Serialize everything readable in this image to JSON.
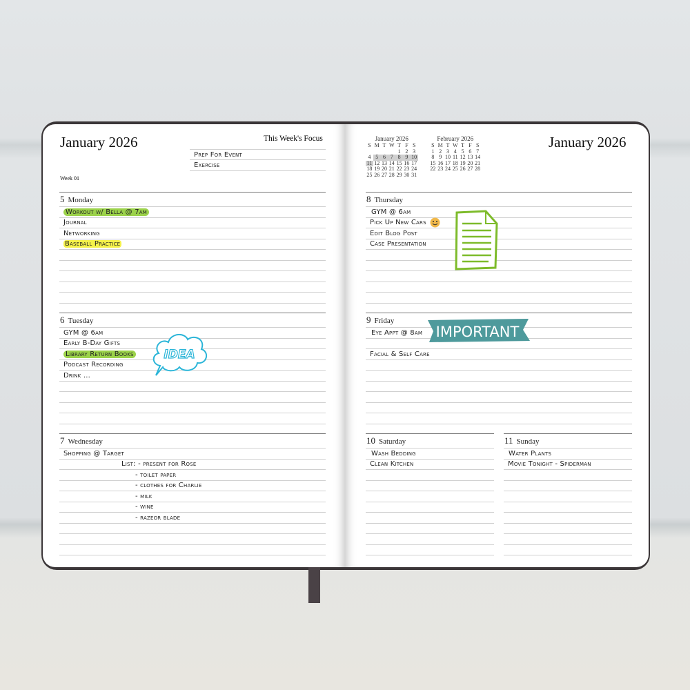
{
  "left_page": {
    "title": "January 2026",
    "focus_label": "This Week's Focus",
    "focus_items": [
      "Prep For Event",
      "Exercise"
    ],
    "week": "Week 01",
    "days": [
      {
        "num": "5",
        "name": "Monday",
        "entries": [
          {
            "text": "Workout w/ Bella @ 7am",
            "hl": "green"
          },
          {
            "text": "Journal"
          },
          {
            "text": "Networking"
          },
          {
            "text": "Baseball Practice",
            "hl": "yellow"
          }
        ]
      },
      {
        "num": "6",
        "name": "Tuesday",
        "entries": [
          {
            "text": "GYM @ 6am"
          },
          {
            "text": "Early B-Day Gifts"
          },
          {
            "text": "Library Return Books",
            "hl": "green"
          },
          {
            "text": "Podcast Recording"
          },
          {
            "text": "Drink ..."
          }
        ]
      },
      {
        "num": "7",
        "name": "Wednesday",
        "entries": [
          {
            "text": "Shopping @ Target"
          },
          {
            "text": "List: - present for Rose"
          },
          {
            "text": "- toilet paper"
          },
          {
            "text": "- clothes for Charlie"
          },
          {
            "text": "- milk"
          },
          {
            "text": "- wine"
          },
          {
            "text": "- razeor blade"
          }
        ]
      }
    ]
  },
  "right_page": {
    "title": "January 2026",
    "mini_calendars": [
      {
        "title": "January 2026",
        "weekdays": [
          "S",
          "M",
          "T",
          "W",
          "T",
          "F",
          "S"
        ],
        "weeks": [
          [
            "",
            "",
            "",
            "",
            "1",
            "2",
            "3"
          ],
          [
            "4",
            "5",
            "6",
            "7",
            "8",
            "9",
            "10"
          ],
          [
            "11",
            "12",
            "13",
            "14",
            "15",
            "16",
            "17"
          ],
          [
            "18",
            "19",
            "20",
            "21",
            "22",
            "23",
            "24"
          ],
          [
            "25",
            "26",
            "27",
            "28",
            "29",
            "30",
            "31"
          ]
        ],
        "highlighted": [
          "5",
          "6",
          "7",
          "8",
          "9",
          "10",
          "11"
        ]
      },
      {
        "title": "February 2026",
        "weekdays": [
          "S",
          "M",
          "T",
          "W",
          "T",
          "F",
          "S"
        ],
        "weeks": [
          [
            "1",
            "2",
            "3",
            "4",
            "5",
            "6",
            "7"
          ],
          [
            "8",
            "9",
            "10",
            "11",
            "12",
            "13",
            "14"
          ],
          [
            "15",
            "16",
            "17",
            "18",
            "19",
            "20",
            "21"
          ],
          [
            "22",
            "23",
            "24",
            "25",
            "26",
            "27",
            "28"
          ]
        ],
        "highlighted": []
      }
    ],
    "days": [
      {
        "num": "8",
        "name": "Thursday",
        "entries": [
          {
            "text": "GYM @ 6am"
          },
          {
            "text": "Pick Up New Cars"
          },
          {
            "text": "Edit Blog Post"
          },
          {
            "text": "Case Presentation"
          }
        ]
      },
      {
        "num": "9",
        "name": "Friday",
        "entries": [
          {
            "text": "Eye Appt @ 8am"
          },
          {
            "text": ""
          },
          {
            "text": "Facial & Self Care"
          }
        ]
      },
      {
        "num": "10",
        "name": "Saturday",
        "entries": [
          {
            "text": "Wash Bedding"
          },
          {
            "text": "Clean Kitchen"
          }
        ]
      },
      {
        "num": "11",
        "name": "Sunday",
        "entries": [
          {
            "text": "Water Plants"
          },
          {
            "text": "Movie Tonight - Spiderman"
          }
        ]
      }
    ]
  },
  "stickers": {
    "idea": "IDEA",
    "important": "IMPORTANT"
  },
  "colors": {
    "highlight_green": "#9bd24a",
    "highlight_yellow": "#f5f24a",
    "important_banner": "#4e9a9c",
    "idea_cyan": "#2bb5d8",
    "doc_green": "#7dbb2a"
  }
}
